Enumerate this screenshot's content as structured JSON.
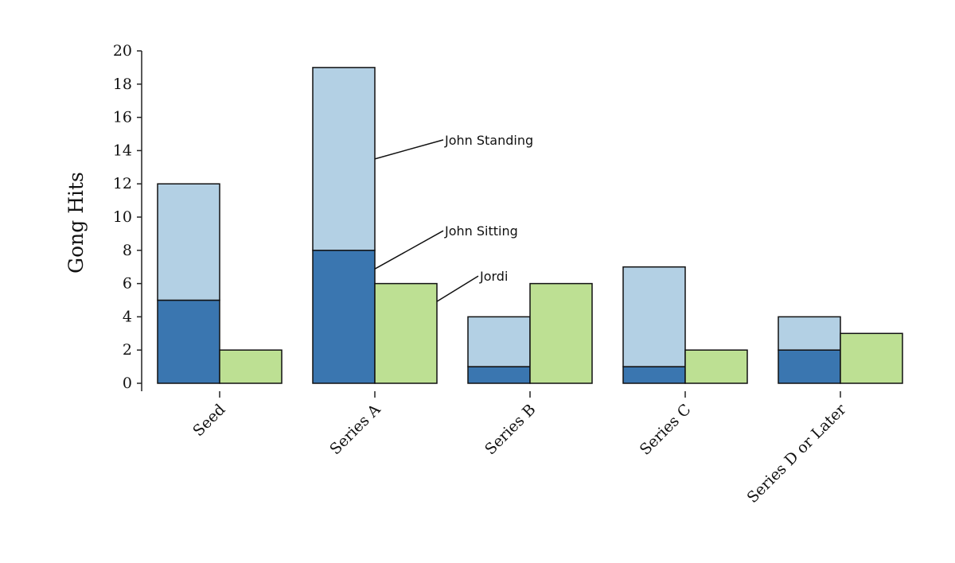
{
  "chart_data": {
    "type": "bar",
    "stacked_and_grouped": true,
    "categories": [
      "Seed",
      "Series A",
      "Series B",
      "Series C",
      "Series D or Later"
    ],
    "series": [
      {
        "name": "John Sitting",
        "stack": "John",
        "color": "#3a76b0",
        "values": [
          5,
          8,
          1,
          1,
          2
        ]
      },
      {
        "name": "John Standing",
        "stack": "John",
        "color": "#b3d0e4",
        "values": [
          7,
          11,
          3,
          6,
          2
        ]
      },
      {
        "name": "Jordi",
        "stack": "Jordi",
        "color": "#bde093",
        "values": [
          2,
          6,
          6,
          2,
          3
        ]
      }
    ],
    "ylabel": "Gong Hits",
    "xlabel": "",
    "ylim": [
      0,
      20
    ],
    "yticks": [
      0,
      2,
      4,
      6,
      8,
      10,
      12,
      14,
      16,
      18,
      20
    ],
    "grid": false,
    "legend": "direct labels on Series A bars",
    "annotations": [
      {
        "text": "John Standing",
        "series": "John Standing",
        "category": "Series A"
      },
      {
        "text": "John Sitting",
        "series": "John Sitting",
        "category": "Series A"
      },
      {
        "text": "Jordi",
        "series": "Jordi",
        "category": "Series A"
      }
    ]
  }
}
